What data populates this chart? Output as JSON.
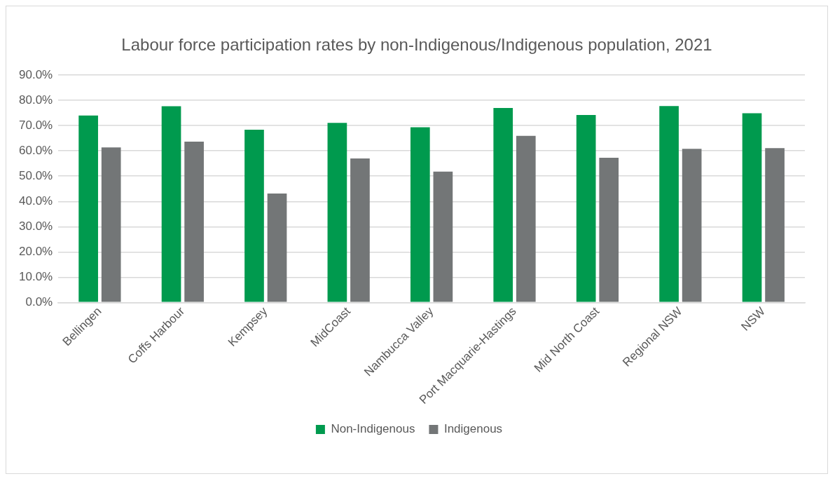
{
  "chart_data": {
    "type": "bar",
    "title": "Labour force participation rates by non-Indigenous/Indigenous population, 2021",
    "categories": [
      "Bellingen",
      "Coffs Harbour",
      "Kempsey",
      "MidCoast",
      "Nambucca Valley",
      "Port Macquarie-Hastings",
      "Mid North Coast",
      "Regional NSW",
      "NSW"
    ],
    "series": [
      {
        "name": "Non-Indigenous",
        "color": "#009a4e",
        "values": [
          74.0,
          77.7,
          68.4,
          71.1,
          69.4,
          77.0,
          74.2,
          77.8,
          74.9
        ]
      },
      {
        "name": "Indigenous",
        "color": "#737677",
        "values": [
          61.4,
          63.7,
          43.1,
          57.0,
          51.8,
          66.0,
          57.3,
          60.8,
          61.1
        ]
      }
    ],
    "ylim": [
      0,
      90
    ],
    "yticks": [
      {
        "value": 0,
        "label": "0.0%"
      },
      {
        "value": 10,
        "label": "10.0%"
      },
      {
        "value": 20,
        "label": "20.0%"
      },
      {
        "value": 30,
        "label": "30.0%"
      },
      {
        "value": 40,
        "label": "40.0%"
      },
      {
        "value": 50,
        "label": "50.0%"
      },
      {
        "value": 60,
        "label": "60.0%"
      },
      {
        "value": 70,
        "label": "70.0%"
      },
      {
        "value": 80,
        "label": "80.0%"
      },
      {
        "value": 90,
        "label": "90.0%"
      }
    ],
    "grid": "y",
    "legend": "bottom"
  }
}
